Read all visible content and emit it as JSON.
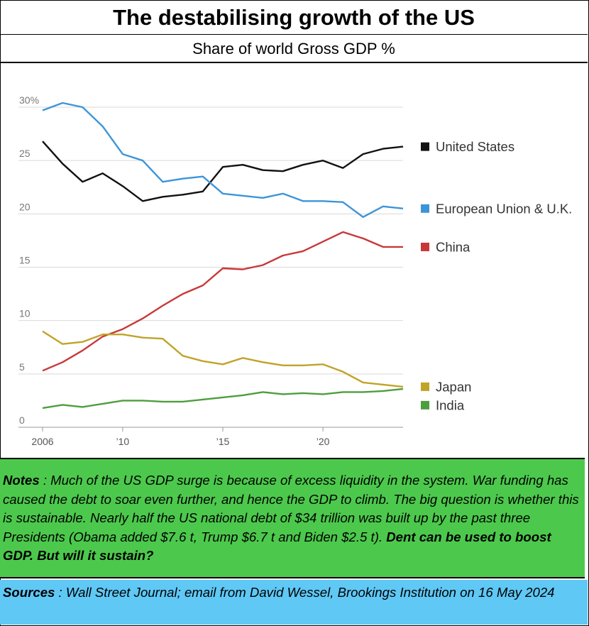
{
  "header": {
    "title": "The destabilising growth of the US",
    "subtitle": "Share of world Gross GDP %"
  },
  "notes": {
    "label": "Notes",
    "text": " : Much of the US GDP surge is because of excess liquidity in the system.  War funding has caused the debt to soar even further, and hence the GDP to climb.  The big question is whether this is sustainable. Nearly half the US national debt of $34 trillion was built up by the past three Presidents (Obama added $7.6 t, Trump $6.7 t and Biden $2.5 t).  ",
    "emphasis": "Dent can be used to boost GDP. But will it sustain?"
  },
  "sources": {
    "label": "Sources",
    "text": " : Wall Street Journal; email from David Wessel, Brookings Institution on 16 May 2024"
  },
  "chart_data": {
    "type": "line",
    "title": "",
    "xlabel": "",
    "ylabel": "",
    "x": [
      2006,
      2007,
      2008,
      2009,
      2010,
      2011,
      2012,
      2013,
      2014,
      2015,
      2016,
      2017,
      2018,
      2019,
      2020,
      2021,
      2022,
      2023,
      2024
    ],
    "xticks": [
      {
        "value": 2006,
        "label": "2006"
      },
      {
        "value": 2010,
        "label": "’10"
      },
      {
        "value": 2015,
        "label": "’15"
      },
      {
        "value": 2020,
        "label": "’20"
      }
    ],
    "yticks": [
      {
        "value": 0,
        "label": "0"
      },
      {
        "value": 5,
        "label": "5"
      },
      {
        "value": 10,
        "label": "10"
      },
      {
        "value": 15,
        "label": "15"
      },
      {
        "value": 20,
        "label": "20"
      },
      {
        "value": 25,
        "label": "25"
      },
      {
        "value": 30,
        "label": "30%"
      }
    ],
    "ylim": [
      0,
      30
    ],
    "xlim": [
      2006,
      2024
    ],
    "grid": true,
    "legend": "right",
    "series": [
      {
        "name": "United States",
        "color": "#111111",
        "values": [
          26.8,
          24.7,
          23.0,
          23.8,
          22.6,
          21.2,
          21.6,
          21.8,
          22.1,
          24.4,
          24.6,
          24.1,
          24.0,
          24.6,
          25.0,
          24.3,
          25.6,
          26.1,
          26.3
        ]
      },
      {
        "name": "European Union & U.K.",
        "color": "#3d95d8",
        "values": [
          29.7,
          30.4,
          30.0,
          28.2,
          25.6,
          25.0,
          23.0,
          23.3,
          23.5,
          21.9,
          21.7,
          21.5,
          21.9,
          21.2,
          21.2,
          21.1,
          19.7,
          20.7,
          20.5
        ]
      },
      {
        "name": "China",
        "color": "#c8383a",
        "values": [
          5.3,
          6.1,
          7.2,
          8.5,
          9.2,
          10.2,
          11.4,
          12.5,
          13.3,
          14.9,
          14.8,
          15.2,
          16.1,
          16.5,
          17.4,
          18.3,
          17.7,
          16.9,
          16.9
        ]
      },
      {
        "name": "Japan",
        "color": "#c1a329",
        "values": [
          9.0,
          7.8,
          8.0,
          8.7,
          8.7,
          8.4,
          8.3,
          6.7,
          6.2,
          5.9,
          6.5,
          6.1,
          5.8,
          5.8,
          5.9,
          5.2,
          4.2,
          4.0,
          3.8
        ]
      },
      {
        "name": "India",
        "color": "#4e9e3d",
        "values": [
          1.8,
          2.1,
          1.9,
          2.2,
          2.5,
          2.5,
          2.4,
          2.4,
          2.6,
          2.8,
          3.0,
          3.3,
          3.1,
          3.2,
          3.1,
          3.3,
          3.3,
          3.4,
          3.6
        ]
      }
    ]
  }
}
